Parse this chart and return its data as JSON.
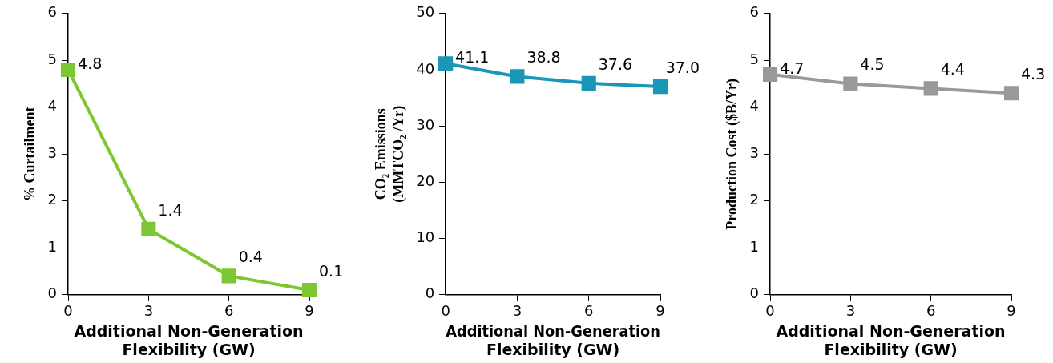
{
  "chart_data": [
    {
      "type": "line",
      "xlabel": "Additional Non-Generation Flexibility (GW)",
      "ylabel": "% Curtailment",
      "x": [
        0,
        3,
        6,
        9
      ],
      "xlim": [
        0,
        9
      ],
      "xticks": [
        0,
        3,
        6,
        9
      ],
      "ylim": [
        0,
        6
      ],
      "yticks": [
        0,
        1,
        2,
        3,
        4,
        5,
        6
      ],
      "marker": "square",
      "line_style": "solid",
      "data_labels": true,
      "series": [
        {
          "color": "#7dc832",
          "values": [
            4.8,
            1.4,
            0.4,
            0.1
          ]
        }
      ]
    },
    {
      "type": "line",
      "xlabel": "Additional Non-Generation Flexibility (GW)",
      "ylabel": "CO₂ Emissions (MMTCO₂ /Yr)",
      "x": [
        0,
        3,
        6,
        9
      ],
      "xlim": [
        0,
        9
      ],
      "xticks": [
        0,
        3,
        6,
        9
      ],
      "ylim": [
        0,
        50
      ],
      "yticks": [
        0,
        10,
        20,
        30,
        40,
        50
      ],
      "marker": "square",
      "line_style": "solid",
      "series": [
        {
          "color": "#1a96b8",
          "values": [
            41.1,
            38.8,
            37.6,
            37.0
          ],
          "value_labels": [
            "41.1",
            "38.8",
            "37.6",
            "37.0"
          ]
        }
      ]
    },
    {
      "type": "line",
      "xlabel": "Additional Non-Generation Flexibility (GW)",
      "ylabel": "Production Cost ($B/Yr)",
      "x": [
        0,
        3,
        6,
        9
      ],
      "xlim": [
        0,
        9
      ],
      "xticks": [
        0,
        3,
        6,
        9
      ],
      "ylim": [
        0,
        6
      ],
      "yticks": [
        0,
        1,
        2,
        3,
        4,
        5,
        6
      ],
      "marker": "square",
      "line_style": "solid",
      "data_labels": true,
      "series": [
        {
          "color": "#999999",
          "values": [
            4.7,
            4.5,
            4.4,
            4.3
          ]
        }
      ]
    }
  ]
}
